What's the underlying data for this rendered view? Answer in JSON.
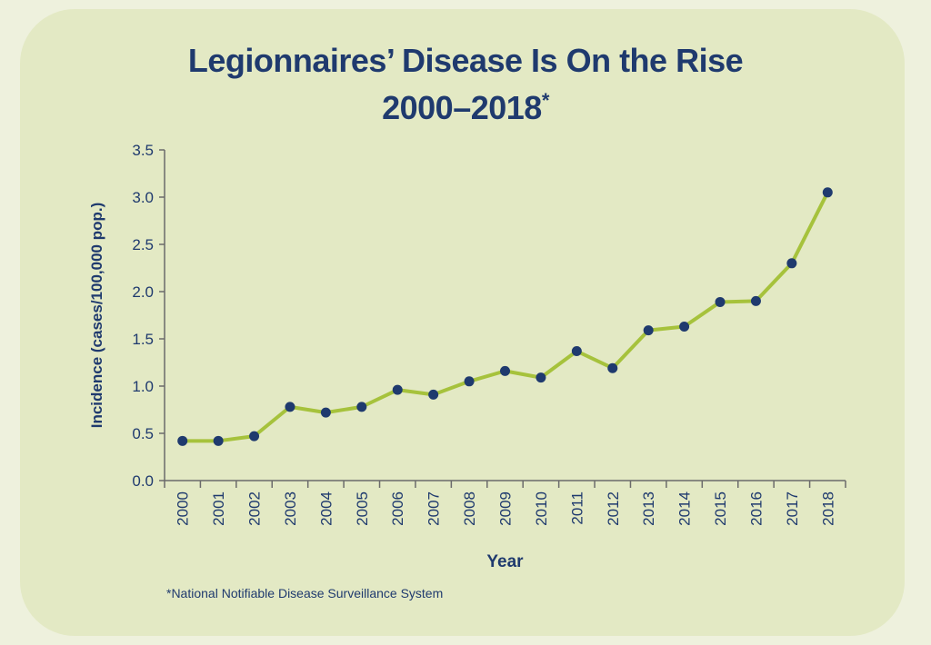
{
  "colors": {
    "title": "#1f3a6e",
    "line": "#a6c23c",
    "marker": "#1f3a6e",
    "panel": "#e3e9c4",
    "axis": "#6b6b6b"
  },
  "chart_data": {
    "type": "line",
    "title": "Legionnaires’ Disease Is On the Rise",
    "subtitle": "2000–2018",
    "title_marker": "*",
    "xlabel": "Year",
    "ylabel": "Incidence (cases/100,000 pop.)",
    "ylim": [
      0,
      3.5
    ],
    "yticks": [
      "0.0",
      "0.5",
      "1.0",
      "1.5",
      "2.0",
      "2.5",
      "3.0",
      "3.5"
    ],
    "grid": false,
    "categories": [
      "2000",
      "2001",
      "2002",
      "2003",
      "2004",
      "2005",
      "2006",
      "2007",
      "2008",
      "2009",
      "2010",
      "2011",
      "2012",
      "2013",
      "2014",
      "2015",
      "2016",
      "2017",
      "2018"
    ],
    "values": [
      0.42,
      0.42,
      0.47,
      0.78,
      0.72,
      0.78,
      0.96,
      0.91,
      1.05,
      1.16,
      1.09,
      1.37,
      1.19,
      1.59,
      1.63,
      1.89,
      1.9,
      2.3,
      3.05
    ]
  },
  "footnote": "*National Notifiable Disease Surveillance System"
}
